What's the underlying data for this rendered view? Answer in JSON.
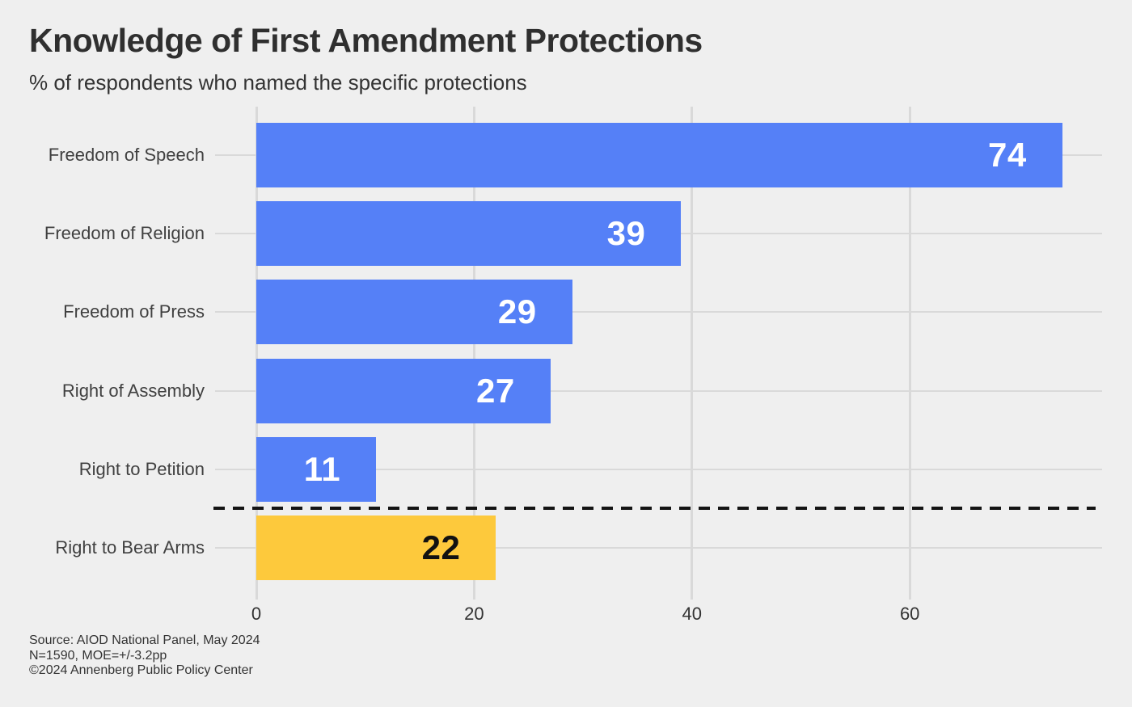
{
  "header": {
    "title": "Knowledge of First Amendment Protections",
    "subtitle": "% of respondents who named the specific protections"
  },
  "chart_data": {
    "type": "bar",
    "orientation": "horizontal",
    "title": "Knowledge of First Amendment Protections",
    "subtitle": "% of respondents who named the specific protections",
    "categories": [
      "Freedom of Speech",
      "Freedom of Religion",
      "Freedom of Press",
      "Right of Assembly",
      "Right to Petition",
      "Right to Bear Arms"
    ],
    "values": [
      74,
      39,
      29,
      27,
      11,
      22
    ],
    "bar_colors": [
      "#5580F7",
      "#5580F7",
      "#5580F7",
      "#5580F7",
      "#5580F7",
      "#FDC93C"
    ],
    "value_label_colors": [
      "#FFFFFF",
      "#FFFFFF",
      "#FFFFFF",
      "#FFFFFF",
      "#FFFFFF",
      "#111111"
    ],
    "x_ticks": [
      0,
      20,
      40,
      60
    ],
    "xlim": [
      0,
      77.7
    ],
    "xlabel": "",
    "ylabel": "",
    "grid": "vertical-and-row-lines",
    "legend": "none",
    "separator": {
      "after_category_index": 4,
      "style": "dashed",
      "color": "#141414"
    },
    "colors": {
      "bar": "#5580F7",
      "highlight": "#FDC93C",
      "background": "#EFEFEF",
      "gridline": "#D9D9D9",
      "title_text": "#2f2f2f",
      "label_text": "#404040"
    }
  },
  "footer": {
    "source_lines": [
      "Source: AIOD National Panel, May 2024",
      "N=1590, MOE=+/-3.2pp",
      "©2024 Annenberg Public Policy Center"
    ]
  }
}
